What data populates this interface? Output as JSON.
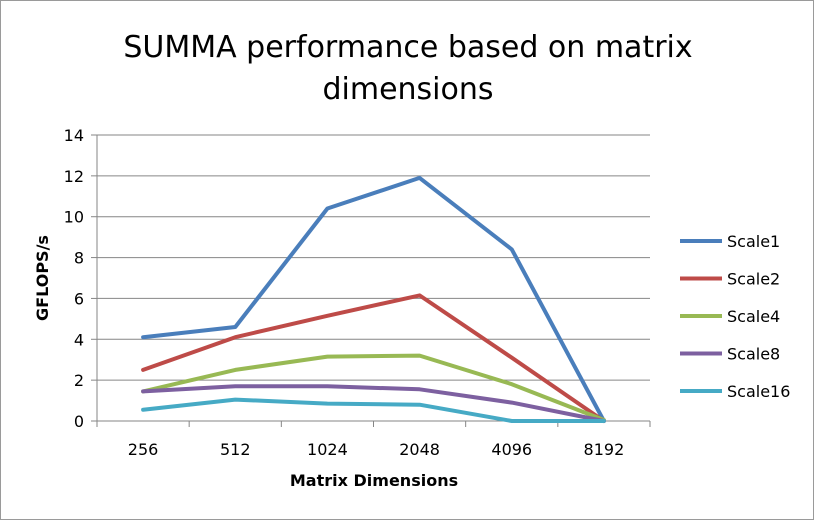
{
  "chart_data": {
    "type": "line",
    "title_lines": [
      "SUMMA performance based on matrix",
      "dimensions"
    ],
    "xlabel": "Matrix Dimensions",
    "ylabel": "GFLOPS/s",
    "categories": [
      "256",
      "512",
      "1024",
      "2048",
      "4096",
      "8192"
    ],
    "ylim": [
      0,
      14
    ],
    "yticks": [
      "0",
      "2",
      "4",
      "6",
      "8",
      "10",
      "12",
      "14"
    ],
    "grid": true,
    "legend_position": "right",
    "series": [
      {
        "name": "Scale1",
        "color": "#4a7ebb",
        "values": [
          4.1,
          4.6,
          10.4,
          11.9,
          8.4,
          0
        ]
      },
      {
        "name": "Scale2",
        "color": "#be4b48",
        "values": [
          2.5,
          4.1,
          5.15,
          6.15,
          3.1,
          0
        ]
      },
      {
        "name": "Scale4",
        "color": "#98b954",
        "values": [
          1.45,
          2.5,
          3.15,
          3.2,
          1.8,
          0.05
        ]
      },
      {
        "name": "Scale8",
        "color": "#7d60a0",
        "values": [
          1.45,
          1.7,
          1.7,
          1.55,
          0.9,
          0
        ]
      },
      {
        "name": "Scale16",
        "color": "#46aac5",
        "values": [
          0.55,
          1.05,
          0.85,
          0.8,
          0,
          0
        ]
      }
    ]
  }
}
